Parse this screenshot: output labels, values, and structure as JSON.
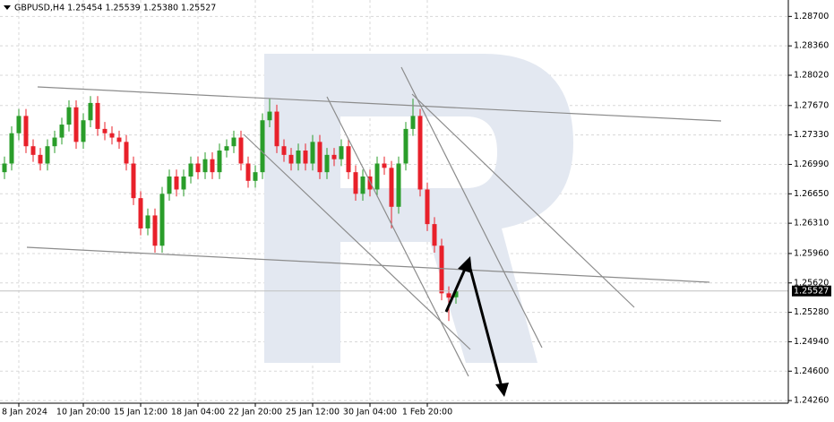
{
  "chart_data": {
    "type": "candlestick",
    "header": "GBPUSD,H4  1.25454 1.25539 1.25380 1.25527",
    "up_color": "#2a9d2a",
    "down_color": "#e8202a",
    "ylim": [
      1.2423,
      1.2889
    ],
    "yticks": [
      {
        "value": 1.287,
        "label": "1.28700"
      },
      {
        "value": 1.2836,
        "label": "1.28360"
      },
      {
        "value": 1.2802,
        "label": "1.28020"
      },
      {
        "value": 1.2767,
        "label": "1.27670"
      },
      {
        "value": 1.2733,
        "label": "1.27330"
      },
      {
        "value": 1.2699,
        "label": "1.26990"
      },
      {
        "value": 1.2665,
        "label": "1.26650"
      },
      {
        "value": 1.2631,
        "label": "1.26310"
      },
      {
        "value": 1.2596,
        "label": "1.25960"
      },
      {
        "value": 1.2562,
        "label": "1.25620"
      },
      {
        "value": 1.2528,
        "label": "1.25280"
      },
      {
        "value": 1.2494,
        "label": "1.24940"
      },
      {
        "value": 1.246,
        "label": "1.24600"
      },
      {
        "value": 1.2426,
        "label": "1.24260"
      }
    ],
    "xlim": [
      0,
      109
    ],
    "xticks": [
      {
        "value": 2,
        "label": "8 Jan 2024"
      },
      {
        "value": 11,
        "label": "10 Jan 20:00"
      },
      {
        "value": 19,
        "label": "15 Jan 12:00"
      },
      {
        "value": 27,
        "label": "18 Jan 04:00"
      },
      {
        "value": 35,
        "label": "22 Jan 20:00"
      },
      {
        "value": 43,
        "label": "25 Jan 12:00"
      },
      {
        "value": 51,
        "label": "30 Jan 04:00"
      },
      {
        "value": 59,
        "label": "1 Feb 20:00"
      }
    ],
    "grid": true,
    "last_price": {
      "value": 1.25527,
      "label": "1.25527"
    },
    "open": [
      1.269,
      1.27,
      1.2735,
      1.2755,
      1.272,
      1.271,
      1.27,
      1.272,
      1.273,
      1.2745,
      1.2765,
      1.2725,
      1.275,
      1.277,
      1.274,
      1.2735,
      1.273,
      1.2725,
      1.27,
      1.266,
      1.2625,
      1.264,
      1.2605,
      1.2665,
      1.2685,
      1.267,
      1.2685,
      1.27,
      1.269,
      1.2705,
      1.269,
      1.2715,
      1.272,
      1.273,
      1.27,
      1.268,
      1.269,
      1.275,
      1.276,
      1.272,
      1.271,
      1.27,
      1.2715,
      1.27,
      1.2725,
      1.269,
      1.271,
      1.2705,
      1.272,
      1.269,
      1.2665,
      1.2685,
      1.267,
      1.27,
      1.2695,
      1.265,
      1.27,
      1.274,
      1.2755,
      1.267,
      1.263,
      1.2605,
      1.255,
      1.25454
    ],
    "high": [
      1.2708,
      1.2743,
      1.2763,
      1.2763,
      1.2728,
      1.2718,
      1.2728,
      1.2738,
      1.2753,
      1.2773,
      1.2773,
      1.2758,
      1.2778,
      1.2778,
      1.2748,
      1.2743,
      1.2738,
      1.2733,
      1.2708,
      1.2668,
      1.2648,
      1.2648,
      1.2673,
      1.2693,
      1.2693,
      1.2693,
      1.2708,
      1.2708,
      1.2713,
      1.2713,
      1.2723,
      1.2728,
      1.2738,
      1.2738,
      1.2708,
      1.2698,
      1.2758,
      1.2775,
      1.2768,
      1.2728,
      1.2718,
      1.2723,
      1.2723,
      1.2733,
      1.2733,
      1.2718,
      1.2718,
      1.2728,
      1.2728,
      1.2698,
      1.2693,
      1.2693,
      1.2708,
      1.2708,
      1.2703,
      1.2708,
      1.2748,
      1.2775,
      1.2763,
      1.2678,
      1.2638,
      1.2613,
      1.2558,
      1.25539
    ],
    "low": [
      1.2682,
      1.2692,
      1.2727,
      1.2712,
      1.2702,
      1.2692,
      1.2692,
      1.2712,
      1.2722,
      1.2737,
      1.2717,
      1.2717,
      1.2742,
      1.2732,
      1.2727,
      1.2722,
      1.2717,
      1.2692,
      1.2652,
      1.2617,
      1.2617,
      1.2597,
      1.2597,
      1.2657,
      1.2662,
      1.2662,
      1.2677,
      1.2682,
      1.2682,
      1.2682,
      1.2682,
      1.2707,
      1.2712,
      1.2692,
      1.2672,
      1.2672,
      1.2682,
      1.2742,
      1.2712,
      1.2702,
      1.2692,
      1.2692,
      1.2692,
      1.2692,
      1.2682,
      1.2682,
      1.2697,
      1.2697,
      1.2682,
      1.2657,
      1.2657,
      1.2662,
      1.2662,
      1.2687,
      1.2625,
      1.2642,
      1.2692,
      1.2732,
      1.2662,
      1.2622,
      1.2597,
      1.2542,
      1.2518,
      1.2538
    ],
    "close": [
      1.27,
      1.2735,
      1.2755,
      1.272,
      1.271,
      1.27,
      1.272,
      1.273,
      1.2745,
      1.2765,
      1.2725,
      1.275,
      1.277,
      1.274,
      1.2735,
      1.273,
      1.2725,
      1.27,
      1.266,
      1.2625,
      1.264,
      1.2605,
      1.2665,
      1.2685,
      1.267,
      1.2685,
      1.27,
      1.269,
      1.2705,
      1.269,
      1.2715,
      1.272,
      1.273,
      1.27,
      1.268,
      1.269,
      1.275,
      1.276,
      1.272,
      1.271,
      1.27,
      1.2715,
      1.27,
      1.2725,
      1.269,
      1.271,
      1.2705,
      1.272,
      1.269,
      1.2665,
      1.2685,
      1.267,
      1.27,
      1.2695,
      1.265,
      1.27,
      1.274,
      1.2755,
      1.267,
      1.263,
      1.2605,
      1.255,
      1.2545,
      1.25527
    ]
  }
}
